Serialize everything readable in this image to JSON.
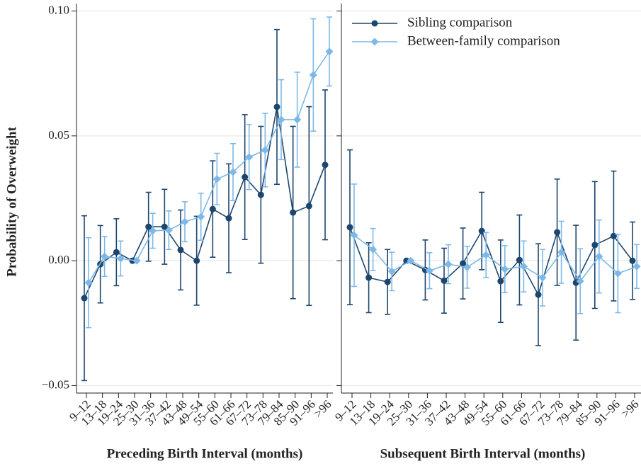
{
  "chart_data": [
    {
      "type": "line",
      "ylabel": "Probability of Overweight",
      "xlabel": "Preceding Birth Interval (months)",
      "categories": [
        "9–12",
        "13–18",
        "19–24",
        "25–30",
        "31–36",
        "37–42",
        "43–48",
        "49–54",
        "55–60",
        "61–66",
        "67–72",
        "73–78",
        "79–84",
        "85–90",
        "91–96",
        ">96"
      ],
      "ylim": [
        -0.053,
        0.103
      ],
      "yticks": [
        {
          "value": -0.05,
          "label": "−0.05"
        },
        {
          "value": 0,
          "label": "0.00"
        },
        {
          "value": 0.05,
          "label": "0.05"
        },
        {
          "value": 0.1,
          "label": "0.10"
        }
      ],
      "show_ytick_labels": true,
      "grid": true,
      "series": [
        {
          "name": "Sibling comparison",
          "color": "#1d466e",
          "marker": "circle",
          "values": [
            -0.015,
            -0.0014,
            0.0034,
            0,
            0.0136,
            0.0136,
            0.0043,
            0.0,
            0.0207,
            0.017,
            0.0335,
            0.0264,
            0.0616,
            0.0193,
            0.0219,
            0.0384
          ],
          "errors": [
            0.033,
            0.0155,
            0.0134,
            0,
            0.0138,
            0.015,
            0.016,
            0.0178,
            0.0193,
            0.0218,
            0.025,
            0.0274,
            0.031,
            0.0345,
            0.0398,
            0.03
          ]
        },
        {
          "name": "Between-family comparison",
          "color": "#7db9e8",
          "marker": "diamond",
          "values": [
            -0.0088,
            0.0017,
            0.0009,
            0,
            0.012,
            0.0122,
            0.0156,
            0.0176,
            0.0327,
            0.0355,
            0.0415,
            0.0443,
            0.0565,
            0.0565,
            0.0744,
            0.0838
          ],
          "errors": [
            0.018,
            0.008,
            0.007,
            0,
            0.007,
            0.0077,
            0.008,
            0.0094,
            0.0103,
            0.0114,
            0.013,
            0.0147,
            0.016,
            0.019,
            0.0225,
            0.0138
          ]
        }
      ]
    },
    {
      "type": "line",
      "xlabel": "Subsequent Birth Interval (months)",
      "categories": [
        "9–12",
        "13–18",
        "19–24",
        "25–30",
        "31–36",
        "37–42",
        "43–48",
        "49–54",
        "55–60",
        "61–66",
        "67–72",
        "73–78",
        "79–84",
        "85–90",
        "91–96",
        ">96"
      ],
      "ylim": [
        -0.053,
        0.103
      ],
      "yticks": [
        -0.05,
        0,
        0.05,
        0.1
      ],
      "show_ytick_labels": false,
      "grid": true,
      "legend": "upper left",
      "series": [
        {
          "name": "Sibling comparison",
          "color": "#1d466e",
          "marker": "circle",
          "values": [
            0.0134,
            -0.0068,
            -0.0085,
            0,
            -0.0037,
            -0.008,
            -0.0011,
            0.0119,
            -0.0082,
            0.0003,
            -0.0136,
            0.0114,
            -0.0088,
            0.0063,
            0.0099,
            0.0
          ],
          "errors": [
            0.031,
            0.014,
            0.013,
            0,
            0.012,
            0.013,
            0.0142,
            0.0155,
            0.0165,
            0.018,
            0.0204,
            0.0213,
            0.023,
            0.0254,
            0.026,
            0.0155
          ]
        },
        {
          "name": "Between-family comparison",
          "color": "#7db9e8",
          "marker": "diamond",
          "values": [
            0.0102,
            0.0045,
            -0.0043,
            0,
            -0.004,
            -0.0014,
            -0.0026,
            0.0023,
            -0.0034,
            -0.0023,
            -0.0068,
            0.0034,
            -0.0082,
            0.0017,
            -0.0051,
            -0.0023
          ],
          "errors": [
            0.0205,
            0.0084,
            0.0077,
            0,
            0.0072,
            0.0078,
            0.0084,
            0.009,
            0.0094,
            0.0102,
            0.0113,
            0.0124,
            0.013,
            0.0146,
            0.0157,
            0.0088
          ]
        }
      ]
    }
  ]
}
